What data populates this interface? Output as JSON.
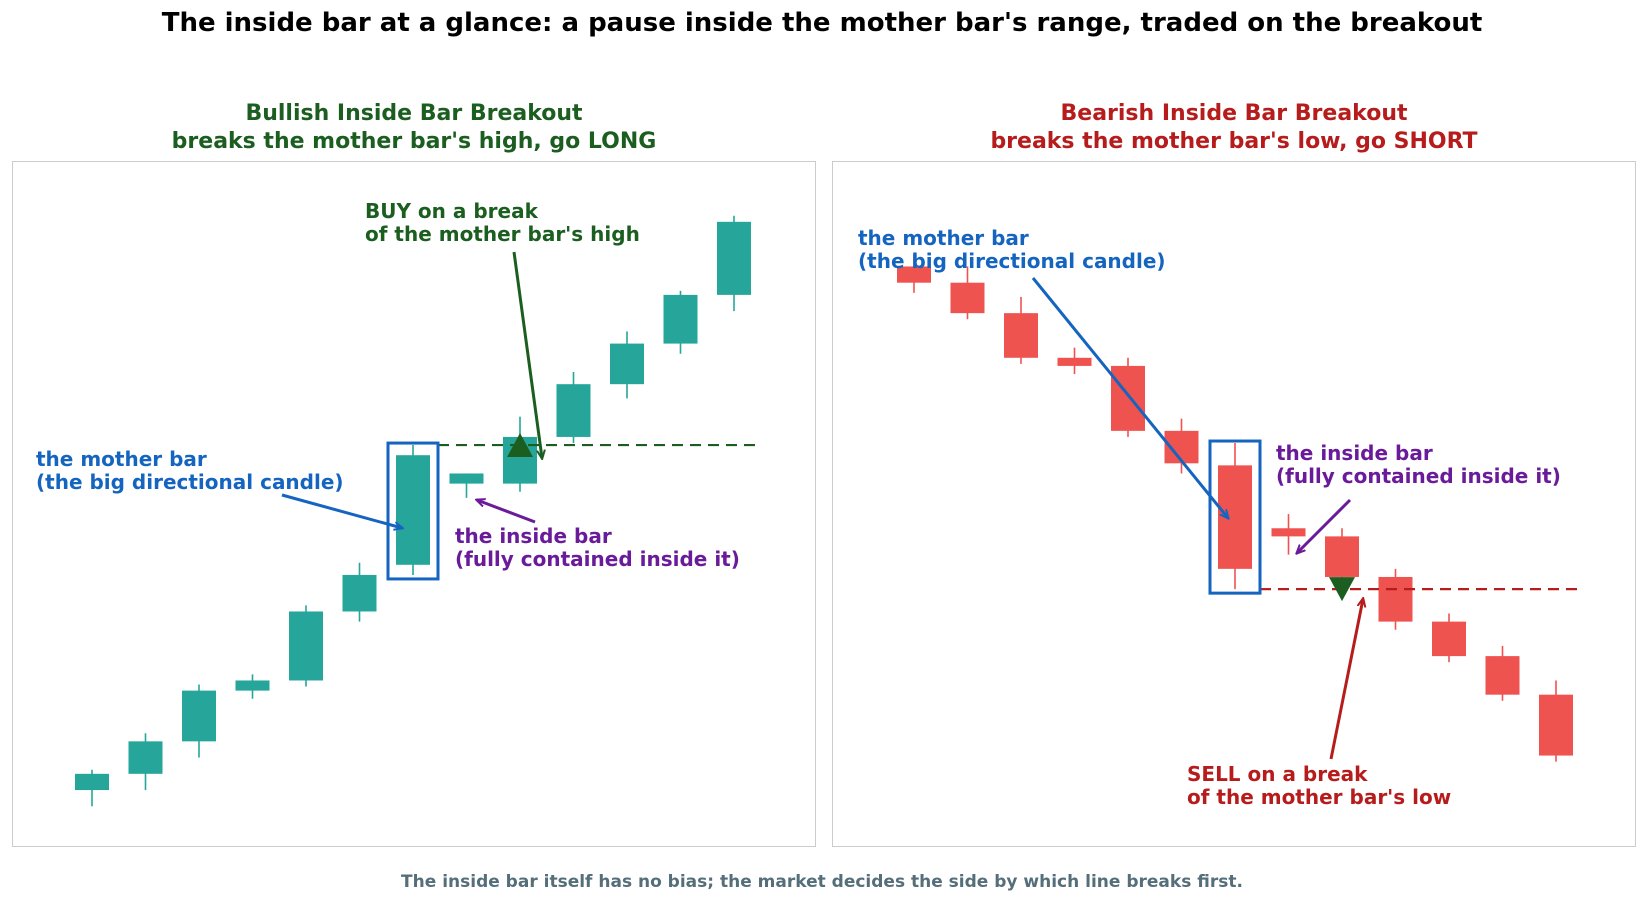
{
  "title": "The inside bar at a glance: a pause inside the mother bar's range, traded on the breakout",
  "footnote": "The inside bar itself has no bias; the market decides the side by which line breaks first.",
  "colors": {
    "bull_candle": "#26a69a",
    "bear_candle": "#ef5350",
    "bull_text": "#1b5e20",
    "bear_text": "#b71c1c",
    "mother_bar": "#1565c0",
    "inside_bar": "#6a1b9a",
    "frame": "#cccccc",
    "footnote": "#546e7a"
  },
  "chart_data": [
    {
      "type": "candlestick",
      "title": "Bullish Inside Bar Breakout",
      "subtitle": "breaks the mother bar's high, go LONG",
      "grid": false,
      "axes_visible": false,
      "ylim": [
        72,
        106
      ],
      "candles": [
        {
          "o": 75.2,
          "h": 76.2,
          "l": 74.4,
          "c": 76.0
        },
        {
          "o": 76.0,
          "h": 78.0,
          "l": 75.2,
          "c": 77.6
        },
        {
          "o": 77.6,
          "h": 80.4,
          "l": 76.8,
          "c": 80.1
        },
        {
          "o": 80.1,
          "h": 80.9,
          "l": 79.7,
          "c": 80.6
        },
        {
          "o": 80.6,
          "h": 84.3,
          "l": 80.3,
          "c": 84.0
        },
        {
          "o": 84.0,
          "h": 86.4,
          "l": 83.5,
          "c": 85.8
        },
        {
          "o": 86.3,
          "h": 92.2,
          "l": 85.8,
          "c": 91.7
        },
        {
          "o": 90.3,
          "h": 90.8,
          "l": 89.6,
          "c": 90.8
        },
        {
          "o": 90.3,
          "h": 93.6,
          "l": 89.9,
          "c": 92.6
        },
        {
          "o": 92.6,
          "h": 95.8,
          "l": 92.3,
          "c": 95.2
        },
        {
          "o": 95.2,
          "h": 97.8,
          "l": 94.5,
          "c": 97.2
        },
        {
          "o": 97.2,
          "h": 99.8,
          "l": 96.7,
          "c": 99.6
        },
        {
          "o": 99.6,
          "h": 103.5,
          "l": 98.8,
          "c": 103.2
        }
      ],
      "mother_bar_index": 6,
      "inside_bar_index": 7,
      "breakout_level": 92.2,
      "signal": {
        "index": 8,
        "price": 92.2,
        "marker": "triangle-up",
        "color": "#1b5e20"
      },
      "annotations": {
        "mother": [
          "the mother bar",
          "(the big directional candle)"
        ],
        "inside": [
          "the inside bar",
          "(fully contained inside it)"
        ],
        "action": [
          "BUY on a break",
          "of the mother bar's high"
        ]
      }
    },
    {
      "type": "candlestick",
      "title": "Bearish Inside Bar Breakout",
      "subtitle": "breaks the mother bar's low, go SHORT",
      "grid": false,
      "axes_visible": false,
      "ylim": [
        72,
        106
      ],
      "candles": [
        {
          "o": 101.0,
          "h": 101.6,
          "l": 99.7,
          "c": 100.2
        },
        {
          "o": 100.2,
          "h": 101.0,
          "l": 98.4,
          "c": 98.7
        },
        {
          "o": 98.7,
          "h": 99.5,
          "l": 96.2,
          "c": 96.5
        },
        {
          "o": 96.5,
          "h": 97.0,
          "l": 95.7,
          "c": 96.1
        },
        {
          "o": 96.1,
          "h": 96.5,
          "l": 92.6,
          "c": 92.9
        },
        {
          "o": 92.9,
          "h": 93.5,
          "l": 90.8,
          "c": 91.3
        },
        {
          "o": 91.2,
          "h": 92.3,
          "l": 85.1,
          "c": 86.1
        },
        {
          "o": 88.1,
          "h": 88.8,
          "l": 86.8,
          "c": 87.7
        },
        {
          "o": 87.7,
          "h": 88.1,
          "l": 85.0,
          "c": 85.7
        },
        {
          "o": 85.7,
          "h": 86.1,
          "l": 83.1,
          "c": 83.5
        },
        {
          "o": 83.5,
          "h": 83.9,
          "l": 81.5,
          "c": 81.8
        },
        {
          "o": 81.8,
          "h": 82.3,
          "l": 79.6,
          "c": 79.9
        },
        {
          "o": 79.9,
          "h": 80.6,
          "l": 76.6,
          "c": 76.9
        }
      ],
      "mother_bar_index": 6,
      "inside_bar_index": 7,
      "breakout_level": 85.1,
      "signal": {
        "index": 8,
        "price": 85.1,
        "marker": "triangle-down",
        "color": "#1b5e20"
      },
      "annotations": {
        "mother": [
          "the mother bar",
          "(the big directional candle)"
        ],
        "inside": [
          "the inside bar",
          "(fully contained inside it)"
        ],
        "action": [
          "SELL on a break",
          "of the mother bar's low"
        ]
      }
    }
  ]
}
